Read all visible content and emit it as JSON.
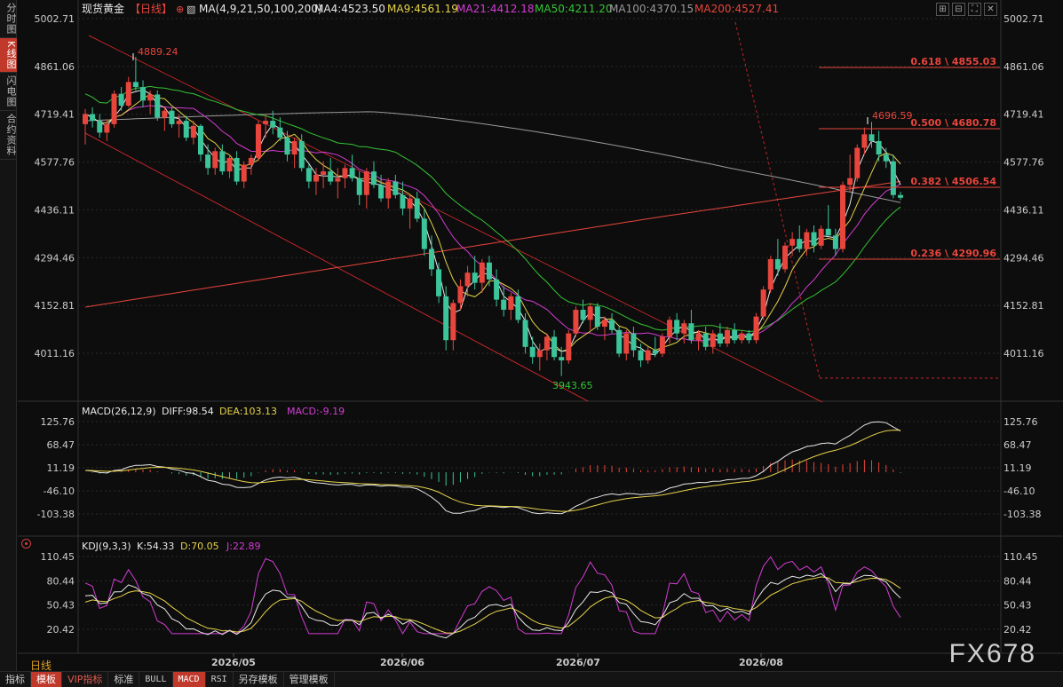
{
  "sidebar": {
    "tabs": [
      "分时图",
      "K线图",
      "闪电图",
      "合约资料"
    ],
    "active": 1
  },
  "price_axis": {
    "labels": [
      "5002.71",
      "4861.06",
      "4719.41",
      "4577.76",
      "4436.11",
      "4294.46",
      "4152.81",
      "4011.16"
    ]
  },
  "macd_axis": {
    "labels": [
      "125.76",
      "68.47",
      "11.19",
      "-46.10",
      "-103.38"
    ]
  },
  "kdj_axis": {
    "labels": [
      "110.45",
      "80.44",
      "50.43",
      "20.42"
    ]
  },
  "date_axis": {
    "labels": [
      "2026/05",
      "2026/06",
      "2026/07",
      "2026/08"
    ]
  },
  "header": {
    "symbol": "现货黄金",
    "period_tag": "【日线】",
    "ma_params": "MA(4,9,21,50,100,200)",
    "ma_values": [
      {
        "label": "MA4:4523.50",
        "color": "#e8e8e8"
      },
      {
        "label": "MA9:4561.19",
        "color": "#e6d24a"
      },
      {
        "label": "MA21:4412.18",
        "color": "#d23cd2"
      },
      {
        "label": "MA50:4211.20",
        "color": "#35c435"
      },
      {
        "label": "MA100:4370.15",
        "color": "#9a9a9a"
      },
      {
        "label": "MA200:4527.41",
        "color": "#e8453c"
      }
    ]
  },
  "price_annotations": {
    "high1": "4889.24",
    "low": "3943.65",
    "high2": "4696.59"
  },
  "fibonacci": [
    {
      "label": "0.618 \\ 4855.03"
    },
    {
      "label": "0.500 \\ 4680.78"
    },
    {
      "label": "0.382 \\ 4506.54"
    },
    {
      "label": "0.236 \\ 4290.96"
    }
  ],
  "macd_header": {
    "name": "MACD(26,12,9)",
    "diff": "DIFF:98.54",
    "dea": "DEA:103.13",
    "macd": "MACD:-9.19"
  },
  "kdj_header": {
    "name": "KDJ(9,3,3)",
    "k": "K:54.33",
    "d": "D:70.05",
    "j": "J:22.89"
  },
  "period_label": "日线",
  "bottom_tabs": [
    {
      "label": "指标",
      "style": "normal"
    },
    {
      "label": "模板",
      "style": "active"
    },
    {
      "label": "VIP指标",
      "style": "vip"
    },
    {
      "label": "标准",
      "style": "normal"
    },
    {
      "label": "BULL",
      "style": "mono"
    },
    {
      "label": "MACD",
      "style": "active-mono"
    },
    {
      "label": "RSI",
      "style": "mono"
    },
    {
      "label": "另存模板",
      "style": "normal"
    },
    {
      "label": "管理模板",
      "style": "normal"
    }
  ],
  "watermark": "FX678",
  "colors": {
    "up": "#e8453c",
    "down": "#3cc49a",
    "background": "#0d0d0d",
    "grid": "#2b2b2b",
    "accent": "#c0392b"
  },
  "icons": [
    "expand-icon",
    "collapse-icon",
    "fullscreen-icon",
    "close-icon"
  ],
  "chart_data": [
    {
      "type": "candlestick",
      "title": "现货黄金 日线",
      "x_ticks": [
        "2026/05",
        "2026/06",
        "2026/07",
        "2026/08"
      ],
      "ylim": [
        3943.65,
        5002.71
      ],
      "series": [
        {
          "name": "MA4",
          "last": 4523.5
        },
        {
          "name": "MA9",
          "last": 4561.19
        },
        {
          "name": "MA21",
          "last": 4412.18
        },
        {
          "name": "MA50",
          "last": 4211.2
        },
        {
          "name": "MA100",
          "last": 4370.15
        },
        {
          "name": "MA200",
          "last": 4527.41
        }
      ],
      "annotations": [
        {
          "text": "4889.24"
        },
        {
          "text": "3943.65"
        },
        {
          "text": "4696.59"
        }
      ],
      "fibonacci": [
        {
          "ratio": 0.618,
          "value": 4855.03
        },
        {
          "ratio": 0.5,
          "value": 4680.78
        },
        {
          "ratio": 0.382,
          "value": 4506.54
        },
        {
          "ratio": 0.236,
          "value": 4290.96
        }
      ],
      "candles": [
        [
          4690,
          4735,
          4630,
          4720
        ],
        [
          4720,
          4740,
          4680,
          4700
        ],
        [
          4700,
          4720,
          4650,
          4665
        ],
        [
          4665,
          4705,
          4640,
          4690
        ],
        [
          4690,
          4790,
          4680,
          4780
        ],
        [
          4780,
          4800,
          4730,
          4745
        ],
        [
          4745,
          4830,
          4740,
          4815
        ],
        [
          4815,
          4889.24,
          4790,
          4800
        ],
        [
          4800,
          4820,
          4740,
          4760
        ],
        [
          4760,
          4790,
          4720,
          4778
        ],
        [
          4778,
          4790,
          4700,
          4710
        ],
        [
          4710,
          4740,
          4670,
          4730
        ],
        [
          4730,
          4740,
          4680,
          4690
        ],
        [
          4690,
          4720,
          4650,
          4700
        ],
        [
          4700,
          4715,
          4640,
          4650
        ],
        [
          4650,
          4700,
          4630,
          4685
        ],
        [
          4685,
          4690,
          4580,
          4600
        ],
        [
          4600,
          4630,
          4540,
          4560
        ],
        [
          4560,
          4620,
          4540,
          4610
        ],
        [
          4610,
          4630,
          4540,
          4550
        ],
        [
          4550,
          4600,
          4530,
          4590
        ],
        [
          4590,
          4610,
          4510,
          4520
        ],
        [
          4520,
          4580,
          4500,
          4570
        ],
        [
          4570,
          4600,
          4540,
          4590
        ],
        [
          4590,
          4700,
          4580,
          4690
        ],
        [
          4690,
          4720,
          4650,
          4700
        ],
        [
          4700,
          4730,
          4660,
          4680
        ],
        [
          4680,
          4710,
          4640,
          4650
        ],
        [
          4650,
          4670,
          4580,
          4600
        ],
        [
          4600,
          4650,
          4560,
          4640
        ],
        [
          4640,
          4660,
          4550,
          4560
        ],
        [
          4560,
          4570,
          4500,
          4520
        ],
        [
          4520,
          4560,
          4480,
          4540
        ],
        [
          4540,
          4580,
          4500,
          4550
        ],
        [
          4550,
          4590,
          4510,
          4520
        ],
        [
          4520,
          4560,
          4470,
          4530
        ],
        [
          4530,
          4570,
          4500,
          4560
        ],
        [
          4560,
          4600,
          4520,
          4530
        ],
        [
          4530,
          4550,
          4450,
          4480
        ],
        [
          4480,
          4560,
          4440,
          4550
        ],
        [
          4550,
          4580,
          4500,
          4510
        ],
        [
          4510,
          4540,
          4460,
          4470
        ],
        [
          4470,
          4530,
          4440,
          4520
        ],
        [
          4520,
          4540,
          4470,
          4480
        ],
        [
          4480,
          4520,
          4420,
          4440
        ],
        [
          4440,
          4480,
          4380,
          4470
        ],
        [
          4470,
          4490,
          4400,
          4410
        ],
        [
          4410,
          4440,
          4300,
          4320
        ],
        [
          4320,
          4360,
          4240,
          4260
        ],
        [
          4260,
          4280,
          4160,
          4180
        ],
        [
          4180,
          4210,
          4020,
          4050
        ],
        [
          4050,
          4170,
          4020,
          4160
        ],
        [
          4160,
          4230,
          4140,
          4210
        ],
        [
          4210,
          4270,
          4180,
          4250
        ],
        [
          4250,
          4300,
          4200,
          4220
        ],
        [
          4220,
          4290,
          4190,
          4280
        ],
        [
          4280,
          4300,
          4210,
          4230
        ],
        [
          4230,
          4260,
          4150,
          4170
        ],
        [
          4170,
          4210,
          4120,
          4140
        ],
        [
          4140,
          4190,
          4110,
          4180
        ],
        [
          4180,
          4200,
          4100,
          4110
        ],
        [
          4110,
          4130,
          4010,
          4030
        ],
        [
          4030,
          4060,
          3980,
          4000
        ],
        [
          4000,
          4040,
          3960,
          4020
        ],
        [
          4020,
          4070,
          3990,
          4060
        ],
        [
          4060,
          4080,
          3990,
          4000
        ],
        [
          4000,
          4030,
          3943.65,
          3990
        ],
        [
          3990,
          4080,
          3980,
          4070
        ],
        [
          4070,
          4150,
          4060,
          4140
        ],
        [
          4140,
          4170,
          4100,
          4110
        ],
        [
          4110,
          4160,
          4080,
          4150
        ],
        [
          4150,
          4160,
          4080,
          4090
        ],
        [
          4090,
          4120,
          4050,
          4110
        ],
        [
          4110,
          4130,
          4070,
          4080
        ],
        [
          4080,
          4090,
          4000,
          4010
        ],
        [
          4010,
          4080,
          3990,
          4070
        ],
        [
          4070,
          4090,
          4000,
          4020
        ],
        [
          4020,
          4040,
          3970,
          3990
        ],
        [
          3990,
          4030,
          3980,
          4020
        ],
        [
          4020,
          4060,
          4000,
          4010
        ],
        [
          4010,
          4070,
          4000,
          4060
        ],
        [
          4060,
          4120,
          4040,
          4110
        ],
        [
          4110,
          4130,
          4050,
          4070
        ],
        [
          4070,
          4110,
          4040,
          4100
        ],
        [
          4100,
          4140,
          4040,
          4050
        ],
        [
          4050,
          4080,
          4020,
          4070
        ],
        [
          4070,
          4090,
          4020,
          4030
        ],
        [
          4030,
          4080,
          4010,
          4070
        ],
        [
          4070,
          4100,
          4030,
          4040
        ],
        [
          4040,
          4090,
          4030,
          4080
        ],
        [
          4080,
          4100,
          4040,
          4050
        ],
        [
          4050,
          4080,
          4040,
          4070
        ],
        [
          4070,
          4080,
          4040,
          4050
        ],
        [
          4050,
          4130,
          4040,
          4120
        ],
        [
          4120,
          4210,
          4110,
          4200
        ],
        [
          4200,
          4300,
          4190,
          4290
        ],
        [
          4290,
          4350,
          4240,
          4260
        ],
        [
          4260,
          4340,
          4250,
          4330
        ],
        [
          4330,
          4370,
          4300,
          4350
        ],
        [
          4350,
          4390,
          4310,
          4320
        ],
        [
          4320,
          4380,
          4300,
          4370
        ],
        [
          4370,
          4390,
          4310,
          4330
        ],
        [
          4330,
          4390,
          4320,
          4380
        ],
        [
          4380,
          4450,
          4360,
          4360
        ],
        [
          4360,
          4380,
          4300,
          4320
        ],
        [
          4320,
          4520,
          4310,
          4510
        ],
        [
          4510,
          4600,
          4490,
          4530
        ],
        [
          4530,
          4630,
          4520,
          4620
        ],
        [
          4620,
          4680,
          4600,
          4660
        ],
        [
          4660,
          4696.59,
          4620,
          4640
        ],
        [
          4640,
          4670,
          4580,
          4600
        ],
        [
          4600,
          4620,
          4560,
          4580
        ],
        [
          4580,
          4600,
          4470,
          4480
        ],
        [
          4480,
          4490,
          4465,
          4472
        ]
      ]
    },
    {
      "type": "bar",
      "title": "MACD(26,12,9)",
      "ylim": [
        -103.38,
        125.76
      ],
      "series": [
        {
          "name": "DIFF",
          "last": 98.54
        },
        {
          "name": "DEA",
          "last": 103.13
        },
        {
          "name": "MACD",
          "last": -9.19
        }
      ]
    },
    {
      "type": "line",
      "title": "KDJ(9,3,3)",
      "ylim": [
        20.42,
        110.45
      ],
      "series": [
        {
          "name": "K",
          "last": 54.33
        },
        {
          "name": "D",
          "last": 70.05
        },
        {
          "name": "J",
          "last": 22.89
        }
      ]
    }
  ]
}
